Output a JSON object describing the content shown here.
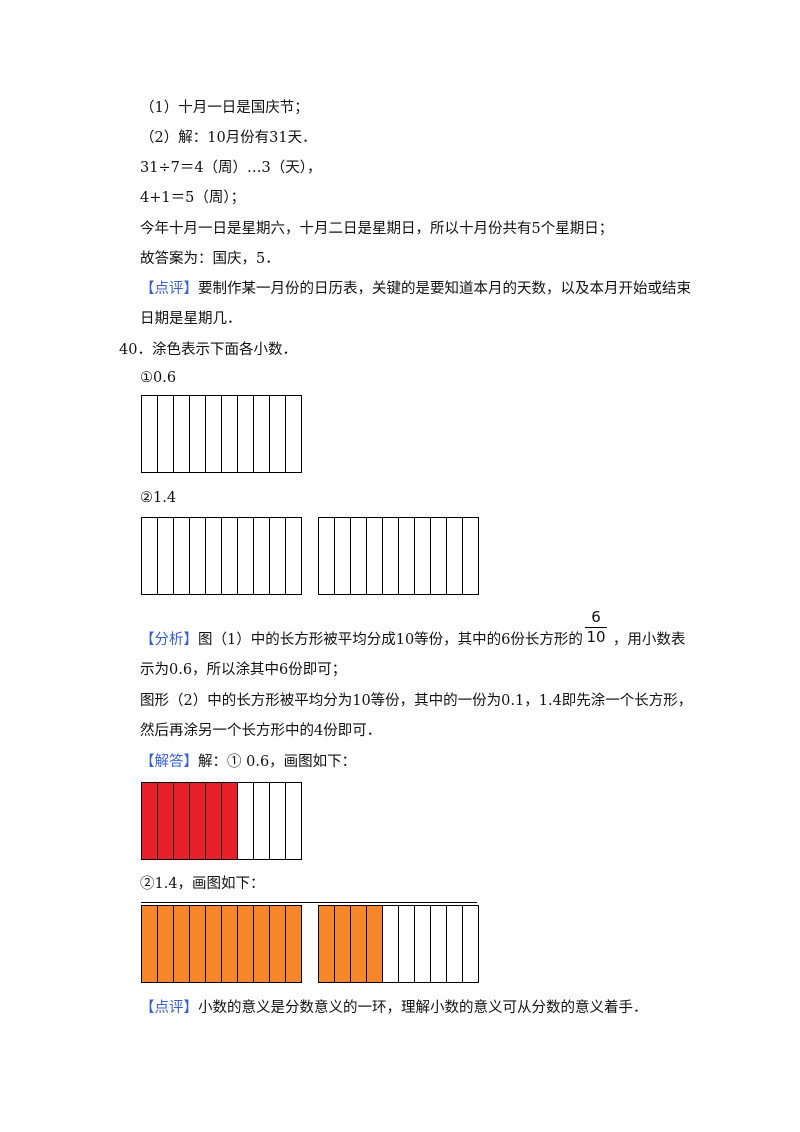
{
  "lines": {
    "l1": "（1）十月一日是国庆节；",
    "l2": "（2）解：10月份有31天．",
    "l3": "31÷7＝4（周）…3（天），",
    "l4": "4+1＝5（周）；",
    "l5": "今年十月一日是星期六，十月二日是星期日，所以十月份共有5个星期日；",
    "l6": "故答案为：国庆，5．",
    "review1_tag": "【点评】",
    "review1_a": "要制作某一月份的日历表，关键的是要知道本月的天数，以及本月开始或结束",
    "review1_b": "日期是星期几．",
    "q40": "40．涂色表示下面各小数．",
    "q40_1": "①0.6",
    "q40_2": "②1.4",
    "analysis_tag": "【分析】",
    "analysis_a": "图（1）中的长方形被平均分成10等份，其中的6份长方形的",
    "analysis_a2": "，用小数表",
    "analysis_b": "示为0.6，所以涂其中6份即可；",
    "analysis_c": "图形（2）中的长方形被平均分为10等份，其中的一份为0.1，1.4即先涂一个长方形，",
    "analysis_d": "然后再涂另一个长方形中的4份即可．",
    "answer_tag": "【解答】",
    "answer_a": "解：①  0.6，画图如下：",
    "answer_b": "②1.4，画图如下：",
    "review2_tag": "【点评】",
    "review2_a": "小数的意义是分数意义的一环，理解小数的意义可从分数的意义着手．"
  },
  "fraction": {
    "numerator": "6",
    "denominator": "10"
  },
  "colors": {
    "tag": "#3a5fcf",
    "red": "#e8202a",
    "orange": "#f5862a"
  },
  "figures": {
    "q1_shaded": 0,
    "q2_shaded": [
      0,
      0
    ],
    "ans1_shaded": 6,
    "ans2_shaded": [
      10,
      4
    ],
    "parts": 10
  }
}
